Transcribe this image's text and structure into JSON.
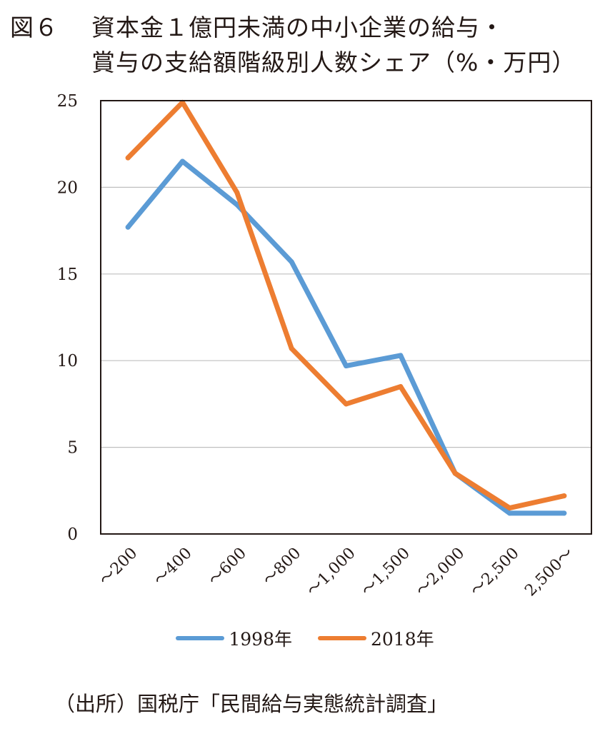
{
  "figure": {
    "label": "図６",
    "title_line1": "資本金１億円未満の中小企業の給与・",
    "title_line2": "賞与の支給額階級別人数シェア（%・万円）"
  },
  "colors": {
    "series_1998": "#5B9BD5",
    "series_2018": "#ED7D31",
    "axis": "#231815",
    "grid": "#bfbfbf"
  },
  "chart_data": {
    "type": "line",
    "title": "資本金１億円未満の中小企業の給与・賞与の支給額階級別人数シェア（%・万円）",
    "xlabel": "",
    "ylabel": "",
    "ylim": [
      0,
      25
    ],
    "y_ticks": [
      "0",
      "5",
      "10",
      "15",
      "20",
      "25"
    ],
    "grid": "horizontal",
    "legend_position": "bottom",
    "categories": [
      "～200",
      "～400",
      "～600",
      "～800",
      "～1,000",
      "～1,500",
      "～2,000",
      "～2,500",
      "2,500～"
    ],
    "series": [
      {
        "name": "1998年",
        "values": [
          17.7,
          21.5,
          19.0,
          15.7,
          9.7,
          10.3,
          3.5,
          1.2,
          1.2
        ]
      },
      {
        "name": "2018年",
        "values": [
          21.7,
          24.9,
          19.7,
          10.7,
          7.5,
          8.5,
          3.5,
          1.5,
          2.2
        ]
      }
    ]
  },
  "source": "（出所）国税庁「民間給与実態統計調査」"
}
